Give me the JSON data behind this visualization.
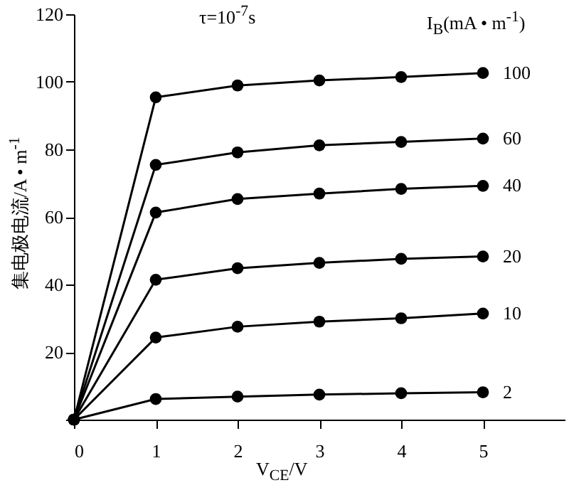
{
  "chart_data": {
    "type": "line",
    "title": "τ=10$^{-7}$s",
    "xlabel": "V$_{CE}$/V",
    "ylabel": "集电极电流/A • m$^{-1}$",
    "legend_title": "I$_{B}$(mA • m$^{-1}$)",
    "x": [
      0,
      1,
      2,
      3,
      4,
      5
    ],
    "series": [
      {
        "name": "100",
        "color": "#000000",
        "values": [
          0,
          95.4,
          98.9,
          100.4,
          101.4,
          102.6
        ]
      },
      {
        "name": "60",
        "color": "#000000",
        "values": [
          0,
          75.4,
          79.1,
          81.2,
          82.2,
          83.2
        ]
      },
      {
        "name": "40",
        "color": "#000000",
        "values": [
          0,
          61.3,
          65.3,
          66.9,
          68.3,
          69.2
        ]
      },
      {
        "name": "20",
        "color": "#000000",
        "values": [
          0,
          41.4,
          44.8,
          46.4,
          47.6,
          48.3
        ]
      },
      {
        "name": "10",
        "color": "#000000",
        "values": [
          0,
          24.3,
          27.5,
          29.0,
          30.0,
          31.4
        ]
      },
      {
        "name": "2",
        "color": "#000000",
        "values": [
          0,
          6.1,
          6.8,
          7.4,
          7.8,
          8.1
        ]
      }
    ],
    "xlim": [
      0,
      6
    ],
    "xticks": [
      0,
      1,
      2,
      3,
      4,
      5
    ],
    "ylim": [
      0,
      120
    ],
    "yticks": [
      {
        "value": 0,
        "label": null
      },
      20,
      40,
      60,
      80,
      100,
      120
    ],
    "grid": false,
    "marker": "circle",
    "line_style": "solid"
  }
}
